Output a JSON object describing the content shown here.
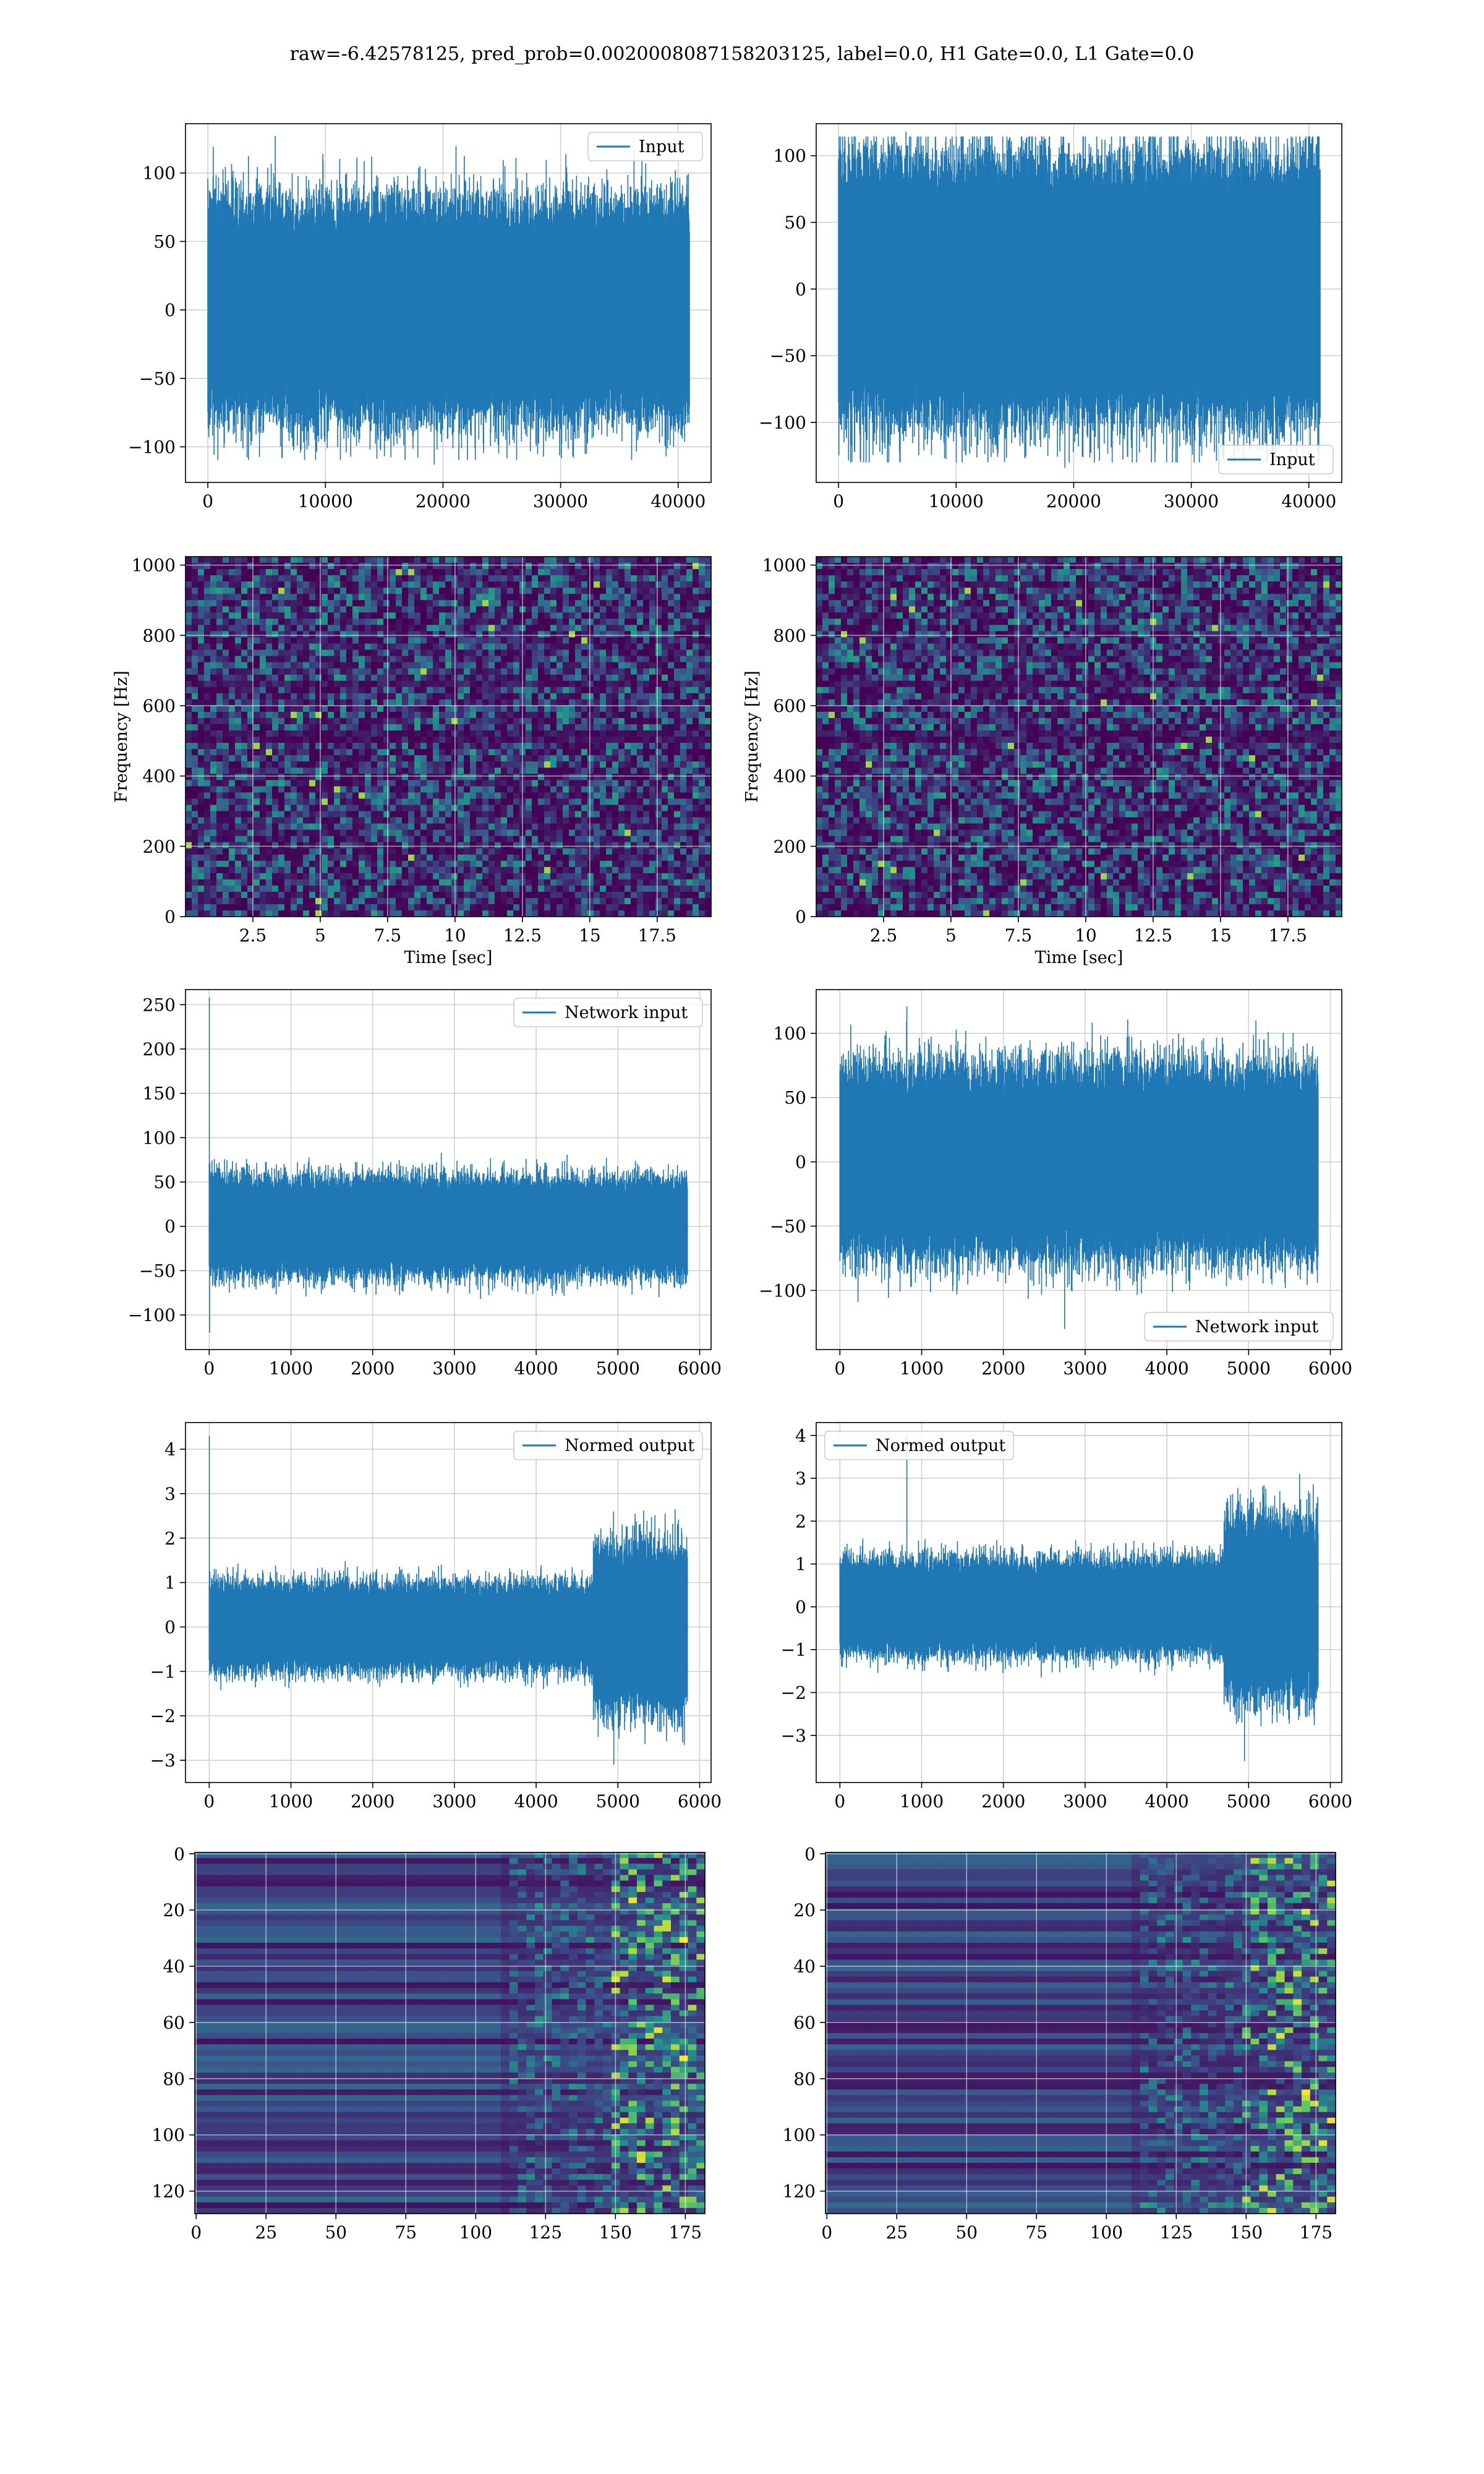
{
  "suptitle": "raw=-6.42578125, pred_prob=0.0020008087158203125, label=0.0, H1 Gate=0.0, L1 Gate=0.0",
  "colors": {
    "line": "#1f77b4",
    "grid": "#d0d0d0",
    "viridis_dark": "#440154",
    "viridis_mid": "#21918c",
    "viridis_bright": "#fde725"
  },
  "chart_data": [
    {
      "id": "input-h1",
      "type": "line",
      "legend": "Input",
      "legend_loc": "top-right",
      "xlim": [
        -1900,
        42800
      ],
      "ylim": [
        -126,
        136
      ],
      "xticks": [
        0,
        10000,
        20000,
        30000,
        40000
      ],
      "yticks": [
        -100,
        -50,
        0,
        50,
        100
      ],
      "n_samples": 40960,
      "band": [
        -65,
        65
      ],
      "peak_max": 127,
      "peak_min": -113,
      "series": [
        {
          "name": "Input",
          "x_range": [
            0,
            40960
          ],
          "envelope": [
            -113,
            127
          ]
        }
      ]
    },
    {
      "id": "input-l1",
      "type": "line",
      "legend": "Input",
      "legend_loc": "bottom-right",
      "xlim": [
        -1900,
        42800
      ],
      "ylim": [
        -145,
        124
      ],
      "xticks": [
        0,
        10000,
        20000,
        30000,
        40000
      ],
      "yticks": [
        -100,
        -50,
        0,
        50,
        100
      ],
      "n_samples": 40960,
      "band": [
        -75,
        80
      ],
      "peak_max": 118,
      "peak_min": -134,
      "series": [
        {
          "name": "Input",
          "x_range": [
            0,
            40960
          ],
          "envelope": [
            -134,
            118
          ]
        }
      ]
    },
    {
      "id": "spec-h1",
      "type": "heatmap",
      "colormap": "viridis",
      "xlim": [
        0,
        19.5
      ],
      "ylim": [
        0,
        1024
      ],
      "xticks": [
        2.5,
        5.0,
        7.5,
        10.0,
        12.5,
        15.0,
        17.5
      ],
      "yticks": [
        0,
        200,
        400,
        600,
        800,
        1000
      ],
      "xlabel": "Time [sec]",
      "ylabel": "Frequency [Hz]"
    },
    {
      "id": "spec-l1",
      "type": "heatmap",
      "colormap": "viridis",
      "xlim": [
        0,
        19.5
      ],
      "ylim": [
        0,
        1024
      ],
      "xticks": [
        2.5,
        5.0,
        7.5,
        10.0,
        12.5,
        15.0,
        17.5
      ],
      "yticks": [
        0,
        200,
        400,
        600,
        800,
        1000
      ],
      "xlabel": "Time [sec]",
      "ylabel": "Frequency [Hz]"
    },
    {
      "id": "net-h1",
      "type": "line",
      "legend": "Network input",
      "legend_loc": "top-right",
      "xlim": [
        -290,
        6140
      ],
      "ylim": [
        -139,
        267
      ],
      "xticks": [
        0,
        1000,
        2000,
        3000,
        4000,
        5000,
        6000
      ],
      "yticks": [
        -100,
        -50,
        0,
        50,
        100,
        150,
        200,
        250
      ],
      "n_samples": 5850,
      "band": [
        -45,
        45
      ],
      "peak_max": 258,
      "peak_min": -120,
      "series": [
        {
          "name": "Network input",
          "x_range": [
            0,
            5850
          ],
          "envelope": [
            -120,
            258
          ]
        }
      ]
    },
    {
      "id": "net-l1",
      "type": "line",
      "legend": "Network input",
      "legend_loc": "bottom-right",
      "xlim": [
        -290,
        6140
      ],
      "ylim": [
        -146,
        134
      ],
      "xticks": [
        0,
        1000,
        2000,
        3000,
        4000,
        5000,
        6000
      ],
      "yticks": [
        -100,
        -50,
        0,
        50,
        100
      ],
      "n_samples": 5850,
      "band": [
        -60,
        60
      ],
      "peak_max": 121,
      "peak_min": -130,
      "series": [
        {
          "name": "Network input",
          "x_range": [
            0,
            5850
          ],
          "envelope": [
            -130,
            121
          ]
        }
      ]
    },
    {
      "id": "norm-h1",
      "type": "line",
      "legend": "Normed output",
      "legend_loc": "top-right",
      "xlim": [
        -290,
        6140
      ],
      "ylim": [
        -3.5,
        4.6
      ],
      "xticks": [
        0,
        1000,
        2000,
        3000,
        4000,
        5000,
        6000
      ],
      "yticks": [
        -3,
        -2,
        -1,
        0,
        1,
        2,
        3,
        4
      ],
      "n_samples": 5850,
      "band": [
        -0.8,
        0.8
      ],
      "peak_max": 4.3,
      "peak_min": -3.1,
      "burst": {
        "x_range": [
          4700,
          5850
        ],
        "envelope": [
          -3.1,
          3.6
        ]
      },
      "series": [
        {
          "name": "Normed output",
          "x_range": [
            0,
            5850
          ],
          "envelope": [
            -3.1,
            4.3
          ]
        }
      ]
    },
    {
      "id": "norm-l1",
      "type": "line",
      "legend": "Normed output",
      "legend_loc": "top-left",
      "xlim": [
        -290,
        6140
      ],
      "ylim": [
        -4.1,
        4.3
      ],
      "xticks": [
        0,
        1000,
        2000,
        3000,
        4000,
        5000,
        6000
      ],
      "yticks": [
        -3,
        -2,
        -1,
        0,
        1,
        2,
        3,
        4
      ],
      "n_samples": 5850,
      "band": [
        -0.9,
        0.9
      ],
      "peak_max": 4.0,
      "peak_min": -3.6,
      "burst": {
        "x_range": [
          4700,
          5850
        ],
        "envelope": [
          -3.6,
          4.0
        ]
      },
      "series": [
        {
          "name": "Normed output",
          "x_range": [
            0,
            5850
          ],
          "envelope": [
            -3.6,
            4.0
          ]
        }
      ]
    },
    {
      "id": "feat-h1",
      "type": "heatmap",
      "colormap": "viridis",
      "xlim": [
        -0.5,
        182
      ],
      "ylim": [
        128,
        -0.5
      ],
      "xticks": [
        0,
        25,
        50,
        75,
        100,
        125,
        150,
        175
      ],
      "yticks": [
        0,
        20,
        40,
        60,
        80,
        100,
        120
      ]
    },
    {
      "id": "feat-l1",
      "type": "heatmap",
      "colormap": "viridis",
      "xlim": [
        -0.5,
        182
      ],
      "ylim": [
        128,
        -0.5
      ],
      "xticks": [
        0,
        25,
        50,
        75,
        100,
        125,
        150,
        175
      ],
      "yticks": [
        0,
        20,
        40,
        60,
        80,
        100,
        120
      ]
    }
  ]
}
